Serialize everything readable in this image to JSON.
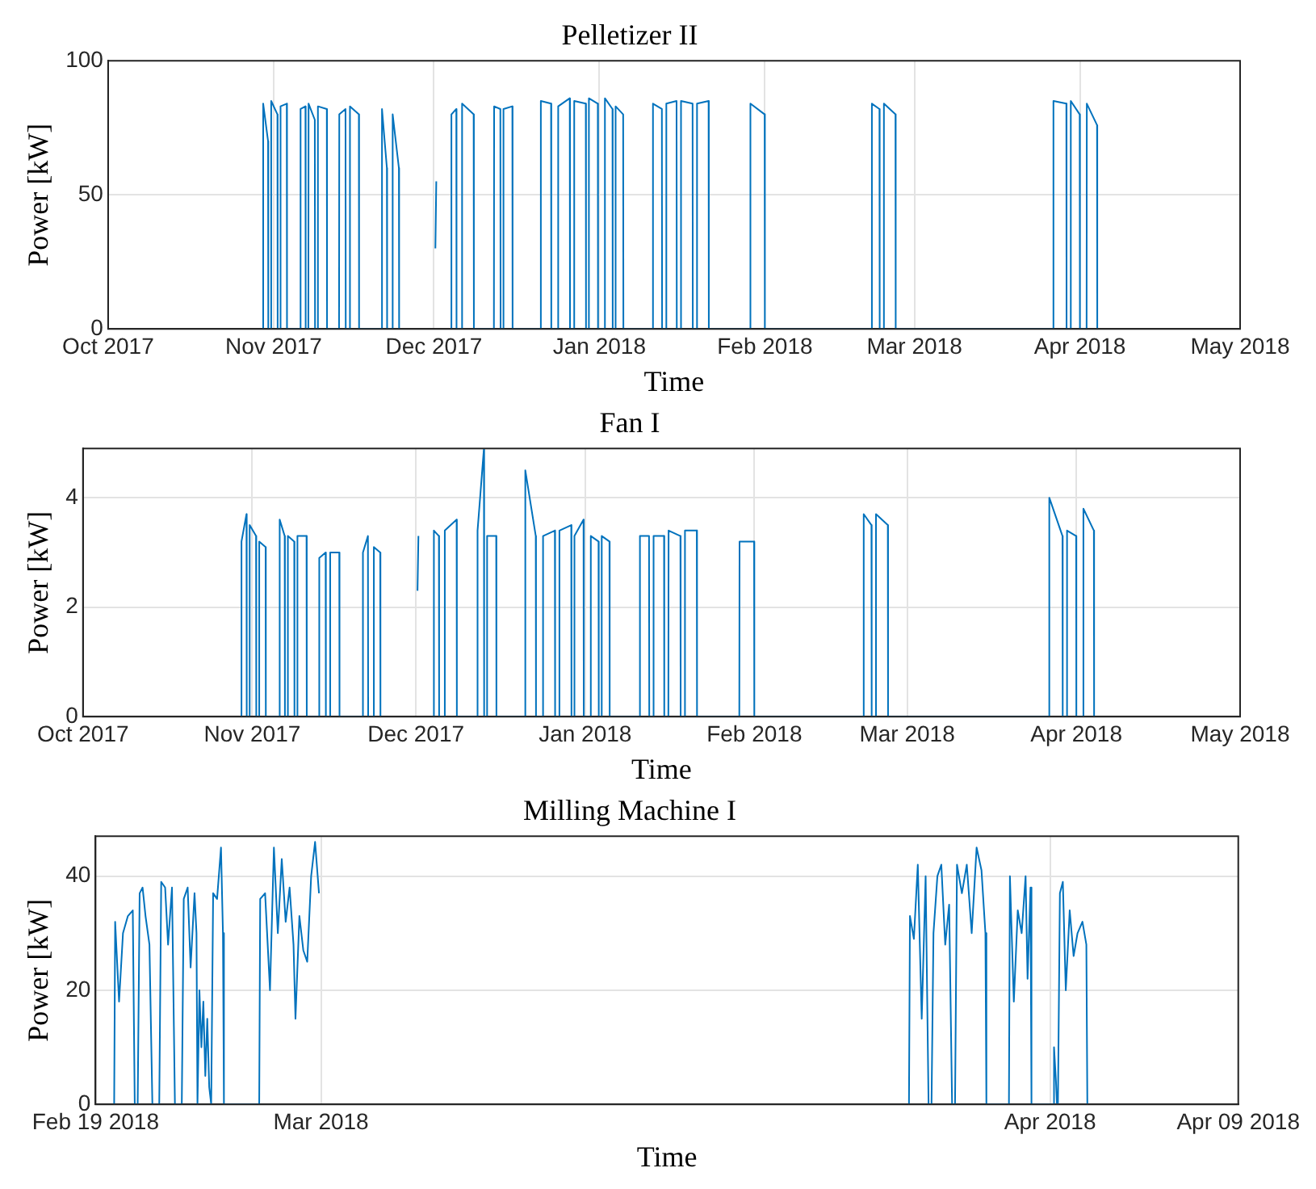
{
  "chart_data": [
    {
      "type": "line",
      "title": "Pelletizer II",
      "xlabel": "Time",
      "ylabel": "Power [kW]",
      "color": "#0072bd",
      "grid": true,
      "xlim": [
        "2017-10",
        "2018-05"
      ],
      "xticks": [
        {
          "value": "2017-10",
          "label": "Oct 2017"
        },
        {
          "value": "2017-11",
          "label": "Nov 2017"
        },
        {
          "value": "2017-12",
          "label": "Dec 2017"
        },
        {
          "value": "2018-01",
          "label": "Jan 2018"
        },
        {
          "value": "2018-02",
          "label": "Feb 2018"
        },
        {
          "value": "2018-03",
          "label": "Mar 2018"
        },
        {
          "value": "2018-04",
          "label": "Apr 2018"
        },
        {
          "value": "2018-05",
          "label": "May 2018"
        }
      ],
      "ylim": [
        0,
        100
      ],
      "yticks": [
        0,
        50,
        100
      ],
      "x": [
        "2017-10-30T00:00",
        "2017-10-30T01:00",
        "2017-10-30T23:00",
        "2017-10-31T00:00",
        "2017-10-31T12:00",
        "2017-10-31T13:00",
        "2017-11-01T17:00",
        "2017-11-01T18:00",
        "2017-11-02T06:00",
        "2017-11-02T07:00",
        "2017-11-03T11:00",
        "2017-11-03T12:00",
        "2017-11-06T00:00",
        "2017-11-06T01:00",
        "2017-11-06T23:00",
        "2017-11-07T00:00",
        "2017-11-07T12:00",
        "2017-11-07T13:00",
        "2017-11-08T17:00",
        "2017-11-08T18:00",
        "2017-11-09T06:00",
        "2017-11-09T07:00",
        "2017-11-10T23:00",
        "2017-11-11T00:00",
        "2017-11-13T06:00",
        "2017-11-13T07:00",
        "2017-11-14T11:00",
        "2017-11-14T12:00",
        "2017-11-15T06:00",
        "2017-11-15T07:00",
        "2017-11-16T23:00",
        "2017-11-17T00:00",
        "2017-11-21T06:00",
        "2017-11-21T07:00",
        "2017-11-22T05:00",
        "2017-11-22T06:00",
        "2017-11-23T06:00",
        "2017-11-23T07:00",
        "2017-11-24T11:00",
        "2017-11-24T12:00",
        "2017-12-01T06:00",
        "2017-12-01T07:00",
        "2017-12-01T11:00",
        "2017-12-01T12:00",
        "2017-12-04T06:00",
        "2017-12-04T07:00",
        "2017-12-05T05:00",
        "2017-12-05T06:00",
        "2017-12-06T06:00",
        "2017-12-06T07:00",
        "2017-12-08T11:00",
        "2017-12-08T12:00",
        "2017-12-12T06:00",
        "2017-12-12T07:00",
        "2017-12-13T11:00",
        "2017-12-13T12:00",
        "2017-12-14T00:00",
        "2017-12-14T01:00",
        "2017-12-15T17:00",
        "2017-12-15T18:00",
        "2017-12-21T00:00",
        "2017-12-21T01:00",
        "2017-12-22T23:00",
        "2017-12-23T00:00",
        "2017-12-24T06:00",
        "2017-12-24T07:00",
        "2017-12-26T11:00",
        "2017-12-26T12:00",
        "2017-12-27T06:00",
        "2017-12-27T07:00",
        "2017-12-29T11:00",
        "2017-12-29T12:00",
        "2017-12-30T00:00",
        "2017-12-30T01:00",
        "2017-12-31T17:00",
        "2017-12-31T18:00",
        "2018-01-02T00:00",
        "2018-01-02T01:00",
        "2018-01-03T11:00",
        "2018-01-03T12:00",
        "2018-01-04T00:00",
        "2018-01-04T01:00",
        "2018-01-05T11:00",
        "2018-01-05T12:00",
        "2018-01-11T00:00",
        "2018-01-11T01:00",
        "2018-01-12T17:00",
        "2018-01-12T18:00",
        "2018-01-13T12:00",
        "2018-01-13T13:00",
        "2018-01-15T11:00",
        "2018-01-15T12:00",
        "2018-01-16T06:00",
        "2018-01-16T07:00",
        "2018-01-18T11:00",
        "2018-01-18T12:00",
        "2018-01-19T06:00",
        "2018-01-19T07:00",
        "2018-01-21T11:00",
        "2018-01-21T12:00",
        "2018-01-29T06:00",
        "2018-01-29T07:00",
        "2018-01-31T23:00",
        "2018-02-01T00:00",
        "2018-02-21T00:00",
        "2018-02-21T01:00",
        "2018-02-22T11:00",
        "2018-02-22T12:00",
        "2018-02-23T06:00",
        "2018-02-23T07:00",
        "2018-02-25T11:00",
        "2018-02-25T12:00",
        "2018-03-27T00:00",
        "2018-03-27T01:00",
        "2018-03-29T11:00",
        "2018-03-29T12:00",
        "2018-03-30T06:00",
        "2018-03-30T07:00",
        "2018-03-31T23:00",
        "2018-04-01T00:00",
        "2018-04-02T06:00",
        "2018-04-02T07:00",
        "2018-04-04T05:00",
        "2018-04-04T06:00"
      ],
      "values": [
        0,
        84,
        70,
        0,
        0,
        85,
        80,
        0,
        0,
        83,
        84,
        0,
        0,
        82,
        83,
        0,
        0,
        84,
        78,
        0,
        0,
        83,
        82,
        0,
        0,
        80,
        82,
        0,
        0,
        83,
        80,
        0,
        0,
        82,
        60,
        0,
        0,
        80,
        60,
        0,
        null,
        30,
        55,
        null,
        0,
        80,
        82,
        0,
        0,
        84,
        80,
        0,
        0,
        83,
        82,
        0,
        0,
        82,
        83,
        0,
        0,
        85,
        84,
        0,
        0,
        83,
        86,
        0,
        0,
        85,
        84,
        0,
        0,
        86,
        84,
        0,
        0,
        86,
        82,
        0,
        0,
        83,
        80,
        0,
        0,
        84,
        82,
        0,
        0,
        84,
        85,
        0,
        0,
        85,
        84,
        0,
        0,
        84,
        85,
        0,
        0,
        84,
        80,
        0,
        0,
        84,
        82,
        0,
        0,
        84,
        80,
        0,
        0,
        85,
        84,
        0,
        0,
        85,
        80,
        0,
        0,
        84,
        76,
        0
      ]
    },
    {
      "type": "line",
      "title": "Fan I",
      "xlabel": "Time",
      "ylabel": "Power [kW]",
      "color": "#0072bd",
      "grid": true,
      "xlim": [
        "2017-10",
        "2018-05"
      ],
      "xticks": [
        {
          "value": "2017-10",
          "label": "Oct 2017"
        },
        {
          "value": "2017-11",
          "label": "Nov 2017"
        },
        {
          "value": "2017-12",
          "label": "Dec 2017"
        },
        {
          "value": "2018-01",
          "label": "Jan 2018"
        },
        {
          "value": "2018-02",
          "label": "Feb 2018"
        },
        {
          "value": "2018-03",
          "label": "Mar 2018"
        },
        {
          "value": "2018-04",
          "label": "Apr 2018"
        },
        {
          "value": "2018-05",
          "label": "May 2018"
        }
      ],
      "ylim": [
        0,
        4.9
      ],
      "yticks": [
        0,
        2,
        4
      ],
      "x": [
        "2017-10-30T00:00",
        "2017-10-30T01:00",
        "2017-10-30T23:00",
        "2017-10-31T00:00",
        "2017-10-31T12:00",
        "2017-10-31T13:00",
        "2017-11-01T17:00",
        "2017-11-01T18:00",
        "2017-11-02T06:00",
        "2017-11-02T07:00",
        "2017-11-03T11:00",
        "2017-11-03T12:00",
        "2017-11-06T00:00",
        "2017-11-06T01:00",
        "2017-11-06T23:00",
        "2017-11-07T00:00",
        "2017-11-07T12:00",
        "2017-11-07T13:00",
        "2017-11-08T17:00",
        "2017-11-08T18:00",
        "2017-11-09T06:00",
        "2017-11-09T07:00",
        "2017-11-10T23:00",
        "2017-11-11T00:00",
        "2017-11-13T06:00",
        "2017-11-13T07:00",
        "2017-11-14T11:00",
        "2017-11-14T12:00",
        "2017-11-15T06:00",
        "2017-11-15T07:00",
        "2017-11-16T23:00",
        "2017-11-17T00:00",
        "2017-11-21T06:00",
        "2017-11-21T07:00",
        "2017-11-22T05:00",
        "2017-11-22T06:00",
        "2017-11-23T06:00",
        "2017-11-23T07:00",
        "2017-11-24T11:00",
        "2017-11-24T12:00",
        "2017-12-01T06:00",
        "2017-12-01T07:00",
        "2017-12-01T11:00",
        "2017-12-01T12:00",
        "2017-12-04T06:00",
        "2017-12-04T07:00",
        "2017-12-05T05:00",
        "2017-12-05T06:00",
        "2017-12-06T06:00",
        "2017-12-06T07:00",
        "2017-12-08T11:00",
        "2017-12-08T12:00",
        "2017-12-12T06:00",
        "2017-12-12T07:00",
        "2017-12-13T11:00",
        "2017-12-13T12:00",
        "2017-12-14T00:00",
        "2017-12-14T01:00",
        "2017-12-15T17:00",
        "2017-12-15T18:00",
        "2017-12-21T00:00",
        "2017-12-21T01:00",
        "2017-12-22T23:00",
        "2017-12-23T00:00",
        "2017-12-24T06:00",
        "2017-12-24T07:00",
        "2017-12-26T11:00",
        "2017-12-26T12:00",
        "2017-12-27T06:00",
        "2017-12-27T07:00",
        "2017-12-29T11:00",
        "2017-12-29T12:00",
        "2017-12-30T00:00",
        "2017-12-30T01:00",
        "2017-12-31T17:00",
        "2017-12-31T18:00",
        "2018-01-02T00:00",
        "2018-01-02T01:00",
        "2018-01-03T11:00",
        "2018-01-03T12:00",
        "2018-01-04T00:00",
        "2018-01-04T01:00",
        "2018-01-05T11:00",
        "2018-01-05T12:00",
        "2018-01-11T00:00",
        "2018-01-11T01:00",
        "2018-01-12T17:00",
        "2018-01-12T18:00",
        "2018-01-13T12:00",
        "2018-01-13T13:00",
        "2018-01-15T11:00",
        "2018-01-15T12:00",
        "2018-01-16T06:00",
        "2018-01-16T07:00",
        "2018-01-18T11:00",
        "2018-01-18T12:00",
        "2018-01-19T06:00",
        "2018-01-19T07:00",
        "2018-01-21T11:00",
        "2018-01-21T12:00",
        "2018-01-29T06:00",
        "2018-01-29T07:00",
        "2018-01-31T23:00",
        "2018-02-01T00:00",
        "2018-02-21T00:00",
        "2018-02-21T01:00",
        "2018-02-22T11:00",
        "2018-02-22T12:00",
        "2018-02-23T06:00",
        "2018-02-23T07:00",
        "2018-02-25T11:00",
        "2018-02-25T12:00",
        "2018-03-27T00:00",
        "2018-03-27T01:00",
        "2018-03-29T11:00",
        "2018-03-29T12:00",
        "2018-03-30T06:00",
        "2018-03-30T07:00",
        "2018-03-31T23:00",
        "2018-04-01T00:00",
        "2018-04-02T06:00",
        "2018-04-02T07:00",
        "2018-04-04T05:00",
        "2018-04-04T06:00"
      ],
      "values": [
        0,
        3.2,
        3.7,
        0,
        0,
        3.5,
        3.3,
        0,
        0,
        3.2,
        3.1,
        0,
        0,
        3.6,
        3.3,
        0,
        0,
        3.3,
        3.2,
        0,
        0,
        3.3,
        3.3,
        0,
        0,
        2.9,
        3.0,
        0,
        0,
        3.0,
        3.0,
        0,
        0,
        3.0,
        3.3,
        0,
        0,
        3.1,
        3.0,
        0,
        null,
        2.3,
        3.3,
        null,
        0,
        3.4,
        3.3,
        0,
        0,
        3.4,
        3.6,
        0,
        0,
        3.4,
        4.9,
        0,
        0,
        3.3,
        3.3,
        0,
        0,
        4.5,
        3.3,
        0,
        0,
        3.3,
        3.4,
        0,
        0,
        3.4,
        3.5,
        0,
        0,
        3.3,
        3.6,
        0,
        0,
        3.3,
        3.2,
        0,
        0,
        3.3,
        3.2,
        0,
        0,
        3.3,
        3.3,
        0,
        0,
        3.3,
        3.3,
        0,
        0,
        3.4,
        3.3,
        0,
        0,
        3.4,
        3.4,
        0,
        0,
        3.2,
        3.2,
        0,
        0,
        3.7,
        3.5,
        0,
        0,
        3.7,
        3.5,
        0,
        0,
        4.0,
        3.3,
        0,
        0,
        3.4,
        3.3,
        0,
        0,
        3.8,
        3.4,
        0
      ]
    },
    {
      "type": "line",
      "title": "Milling Machine I",
      "xlabel": "Time",
      "ylabel": "Power [kW]",
      "color": "#0072bd",
      "grid": true,
      "xlim": [
        "2018-02-19T10:00",
        "2018-04-09"
      ],
      "xticks": [
        {
          "value": "2018-02-19T10:00",
          "label": "Feb 19 2018"
        },
        {
          "value": "2018-03",
          "label": "Mar 2018"
        },
        {
          "value": "2018-04",
          "label": "Apr 2018"
        },
        {
          "value": "2018-04-09",
          "label": "Apr 09 2018"
        }
      ],
      "ylim": [
        0,
        47
      ],
      "yticks": [
        0,
        20,
        40
      ],
      "x": [
        "2018-02-20T05:00",
        "2018-02-20T06:00",
        "2018-02-20T10:00",
        "2018-02-20T14:00",
        "2018-02-20T19:00",
        "2018-02-21T00:00",
        "2018-02-21T02:00",
        "2018-02-21T05:00",
        "2018-02-21T07:00",
        "2018-02-21T10:00",
        "2018-02-21T13:00",
        "2018-02-21T17:00",
        "2018-02-21T20:00",
        "2018-02-22T03:00",
        "2018-02-22T05:00",
        "2018-02-22T09:00",
        "2018-02-22T12:00",
        "2018-02-22T16:00",
        "2018-02-22T19:00",
        "2018-02-23T02:00",
        "2018-02-23T04:00",
        "2018-02-23T08:00",
        "2018-02-23T11:00",
        "2018-02-23T15:00",
        "2018-02-23T17:00",
        "2018-02-23T18:00",
        "2018-02-23T20:00",
        "2018-02-23T22:00",
        "2018-02-24T00:00",
        "2018-02-24T02:00",
        "2018-02-24T04:00",
        "2018-02-24T06:00",
        "2018-02-24T08:00",
        "2018-02-24T10:00",
        "2018-02-24T14:00",
        "2018-02-24T18:00",
        "2018-02-24T20:00",
        "2018-02-24T21:00",
        "2018-02-26T09:00",
        "2018-02-26T10:00",
        "2018-02-26T15:00",
        "2018-02-26T20:00",
        "2018-02-27T00:00",
        "2018-02-27T04:00",
        "2018-02-27T08:00",
        "2018-02-27T12:00",
        "2018-02-27T16:00",
        "2018-02-27T20:00",
        "2018-02-27T22:00",
        "2018-02-28T02:00",
        "2018-02-28T06:00",
        "2018-02-28T10:00",
        "2018-02-28T14:00",
        "2018-02-28T18:00",
        "2018-02-28T22:00",
        "2018-03-15T00:00",
        "2018-03-26T00:00",
        "2018-03-26T01:00",
        "2018-03-26T05:00",
        "2018-03-26T09:00",
        "2018-03-26T13:00",
        "2018-03-26T17:00",
        "2018-03-26T20:00",
        "2018-03-26T23:00",
        "2018-03-27T01:00",
        "2018-03-27T05:00",
        "2018-03-27T09:00",
        "2018-03-27T13:00",
        "2018-03-27T17:00",
        "2018-03-27T20:00",
        "2018-03-27T23:00",
        "2018-03-28T01:00",
        "2018-03-28T06:00",
        "2018-03-28T11:00",
        "2018-03-28T16:00",
        "2018-03-28T21:00",
        "2018-03-29T02:00",
        "2018-03-29T06:00",
        "2018-03-29T07:00",
        "2018-03-30T06:00",
        "2018-03-30T07:00",
        "2018-03-30T11:00",
        "2018-03-30T15:00",
        "2018-03-30T19:00",
        "2018-03-30T23:00",
        "2018-03-31T01:00",
        "2018-03-31T04:00",
        "2018-03-31T05:00",
        "2018-04-01T03:00",
        "2018-04-01T04:00",
        "2018-04-01T06:00",
        "2018-04-01T07:00",
        "2018-04-01T08:00",
        "2018-04-01T10:00",
        "2018-04-01T13:00",
        "2018-04-01T16:00",
        "2018-04-01T20:00",
        "2018-04-02T00:00",
        "2018-04-02T04:00",
        "2018-04-02T09:00",
        "2018-04-02T13:00",
        "2018-04-02T14:00"
      ],
      "values": [
        0,
        32,
        18,
        30,
        33,
        34,
        0,
        0,
        37,
        38,
        33,
        28,
        0,
        0,
        39,
        38,
        28,
        38,
        0,
        0,
        36,
        38,
        24,
        37,
        30,
        0,
        20,
        10,
        18,
        5,
        15,
        3,
        0,
        37,
        36,
        45,
        30,
        0,
        0,
        36,
        37,
        20,
        45,
        30,
        43,
        32,
        38,
        28,
        15,
        33,
        27,
        25,
        40,
        46,
        37,
        null,
        0,
        33,
        29,
        42,
        15,
        40,
        0,
        0,
        30,
        40,
        42,
        28,
        35,
        0,
        0,
        42,
        37,
        42,
        30,
        45,
        41,
        30,
        0,
        0,
        40,
        18,
        34,
        30,
        40,
        22,
        38,
        0,
        0,
        10,
        4,
        0,
        0,
        37,
        39,
        20,
        34,
        26,
        30,
        32,
        28,
        0
      ]
    }
  ]
}
